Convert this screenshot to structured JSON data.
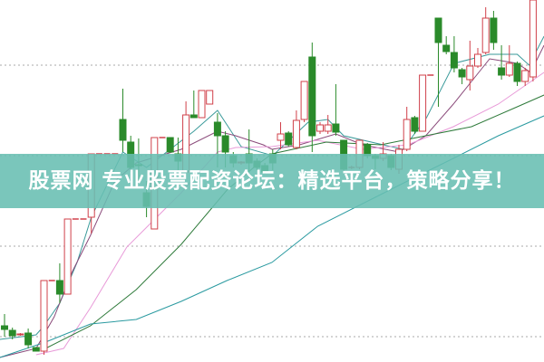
{
  "banner": {
    "text": "股票网 专业股票配资论坛：精选平台，策略分享！",
    "color": "#68beb2"
  },
  "chart_data": {
    "type": "candlestick",
    "title": "",
    "xlabel": "",
    "ylabel": "",
    "ylim": [
      0,
      400
    ],
    "grid": {
      "horizontal_dotted": true,
      "levels": [
        28,
        128,
        228,
        328
      ]
    },
    "colors": {
      "up": "#d0404a",
      "down": "#2a8a2a",
      "grid": "#aaaaaa"
    },
    "candles": [
      [
        40,
        36,
        53,
        28
      ],
      [
        35,
        29,
        38,
        25
      ],
      [
        30,
        31,
        32,
        29
      ],
      [
        32,
        19,
        37,
        15
      ],
      [
        16,
        12,
        16,
        12
      ],
      [
        12,
        90,
        90,
        8
      ],
      [
        90,
        90,
        90,
        90
      ],
      [
        90,
        75,
        109,
        65
      ],
      [
        75,
        158,
        158,
        75
      ],
      [
        158,
        158,
        158,
        158
      ],
      [
        158,
        158,
        158,
        158
      ],
      [
        160,
        230,
        230,
        142
      ],
      [
        230,
        230,
        230,
        230
      ],
      [
        230,
        230,
        230,
        230
      ],
      [
        230,
        230,
        230,
        230
      ],
      [
        268,
        245,
        302,
        232
      ],
      [
        243,
        215,
        250,
        210
      ],
      [
        218,
        217,
        247,
        200
      ],
      [
        187,
        172,
        200,
        160
      ],
      [
        147,
        248,
        248,
        147
      ],
      [
        248,
        248,
        248,
        248
      ],
      [
        248,
        232,
        248,
        232
      ],
      [
        230,
        222,
        248,
        210
      ],
      [
        210,
        273,
        288,
        210
      ],
      [
        273,
        270,
        300,
        270
      ],
      [
        270,
        300,
        300,
        270
      ],
      [
        285,
        300,
        300,
        285
      ],
      [
        265,
        250,
        275,
        215
      ],
      [
        250,
        232,
        255,
        215
      ],
      [
        228,
        220,
        232,
        215
      ],
      [
        220,
        221,
        222,
        218
      ],
      [
        230,
        220,
        257,
        210
      ],
      [
        222,
        215,
        225,
        212
      ],
      [
        217,
        210,
        220,
        208
      ],
      [
        230,
        220,
        235,
        212
      ],
      [
        245,
        252,
        265,
        235
      ],
      [
        253,
        240,
        255,
        238
      ],
      [
        237,
        267,
        278,
        235
      ],
      [
        268,
        310,
        310,
        265
      ],
      [
        337,
        250,
        353,
        232
      ],
      [
        255,
        262,
        265,
        252
      ],
      [
        255,
        262,
        273,
        252
      ],
      [
        263,
        254,
        307,
        250
      ],
      [
        245,
        213,
        245,
        210
      ],
      [
        215,
        215,
        217,
        213
      ],
      [
        215,
        245,
        245,
        213
      ],
      [
        240,
        228,
        242,
        225
      ],
      [
        228,
        225,
        230,
        213
      ],
      [
        225,
        230,
        243,
        222
      ],
      [
        228,
        215,
        230,
        212
      ],
      [
        213,
        235,
        240,
        208
      ],
      [
        235,
        268,
        282,
        233
      ],
      [
        270,
        255,
        272,
        252
      ],
      [
        255,
        317,
        317,
        255
      ],
      [
        317,
        317,
        317,
        317
      ],
      [
        380,
        353,
        380,
        282
      ],
      [
        350,
        343,
        360,
        340
      ],
      [
        342,
        325,
        360,
        320
      ],
      [
        323,
        315,
        325,
        307
      ],
      [
        312,
        327,
        355,
        300
      ],
      [
        327,
        340,
        347,
        325
      ],
      [
        342,
        380,
        392,
        340
      ],
      [
        380,
        353,
        388,
        345
      ],
      [
        325,
        317,
        350,
        312
      ],
      [
        317,
        330,
        350,
        315
      ],
      [
        330,
        310,
        332,
        305
      ],
      [
        310,
        322,
        325,
        305
      ],
      [
        315,
        400,
        400,
        310
      ]
    ],
    "moving_averages": [
      {
        "color": "#3a9a9a",
        "points": [
          [
            -0.6,
            25
          ],
          [
            4,
            30
          ],
          [
            5,
            40
          ],
          [
            7,
            65
          ],
          [
            9.2,
            110
          ],
          [
            11,
            160
          ],
          [
            15,
            232
          ],
          [
            18,
            215
          ],
          [
            19.5,
            225
          ],
          [
            24,
            255
          ],
          [
            27,
            278
          ],
          [
            30,
            238
          ],
          [
            34,
            228
          ],
          [
            38.5,
            265
          ],
          [
            41,
            268
          ],
          [
            43,
            250
          ],
          [
            48,
            240
          ],
          [
            50.5,
            235
          ],
          [
            53.5,
            270
          ],
          [
            57,
            330
          ],
          [
            61.5,
            340
          ],
          [
            65,
            340
          ],
          [
            66.5,
            328
          ],
          [
            68.4,
            360
          ]
        ]
      },
      {
        "color": "#8a4a7a",
        "points": [
          [
            -0.6,
            5
          ],
          [
            4,
            15
          ],
          [
            6.3,
            50
          ],
          [
            8.6,
            100
          ],
          [
            10.9,
            140
          ],
          [
            14,
            200
          ],
          [
            16.7,
            220
          ],
          [
            22.4,
            235
          ],
          [
            27,
            255
          ],
          [
            29.3,
            250
          ],
          [
            32.8,
            240
          ],
          [
            33.9,
            235
          ],
          [
            37.4,
            240
          ],
          [
            42,
            252
          ],
          [
            45.4,
            240
          ],
          [
            50,
            232
          ],
          [
            53.4,
            250
          ],
          [
            56.9,
            285
          ],
          [
            59.2,
            310
          ],
          [
            61.5,
            335
          ],
          [
            65,
            330
          ],
          [
            66.7,
            320
          ],
          [
            68.4,
            350
          ]
        ]
      },
      {
        "color": "#e89ad8",
        "points": [
          [
            4,
            8
          ],
          [
            7.5,
            15
          ],
          [
            10.9,
            60
          ],
          [
            15.5,
            127
          ],
          [
            22.4,
            187
          ],
          [
            27,
            232
          ],
          [
            29.3,
            237
          ],
          [
            33.9,
            238
          ],
          [
            39.7,
            245
          ],
          [
            45.4,
            235
          ],
          [
            51.1,
            240
          ],
          [
            56.9,
            260
          ],
          [
            62.6,
            285
          ],
          [
            68.4,
            320
          ]
        ]
      },
      {
        "color": "#2e7a3a",
        "points": [
          [
            5.2,
            15
          ],
          [
            10.9,
            40
          ],
          [
            16.7,
            80
          ],
          [
            22.4,
            130
          ],
          [
            28.2,
            190
          ],
          [
            31.6,
            215
          ],
          [
            33.9,
            230
          ],
          [
            40.8,
            243
          ],
          [
            47.7,
            240
          ],
          [
            53.4,
            250
          ],
          [
            59.2,
            260
          ],
          [
            65,
            282
          ],
          [
            68.4,
            295
          ]
        ]
      },
      {
        "color": "#2a9aa0",
        "points": [
          [
            -0.6,
            5
          ],
          [
            5.2,
            22
          ],
          [
            10.9,
            42
          ],
          [
            16.7,
            47
          ],
          [
            22.4,
            67
          ],
          [
            28.2,
            90
          ],
          [
            33.9,
            110
          ],
          [
            39.7,
            150
          ],
          [
            45.4,
            175
          ],
          [
            51.1,
            200
          ],
          [
            56.9,
            225
          ],
          [
            62.6,
            250
          ],
          [
            68.4,
            272
          ]
        ]
      }
    ]
  }
}
